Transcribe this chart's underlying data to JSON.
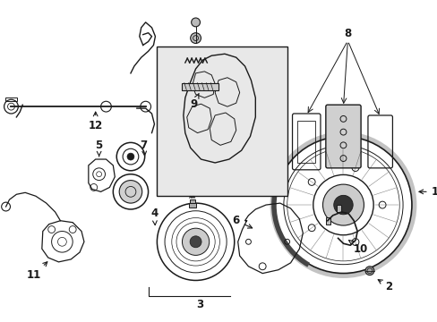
{
  "bg_color": "#ffffff",
  "line_color": "#1a1a1a",
  "box_bg": "#e8e8e8",
  "figsize": [
    4.89,
    3.6
  ],
  "dpi": 100
}
